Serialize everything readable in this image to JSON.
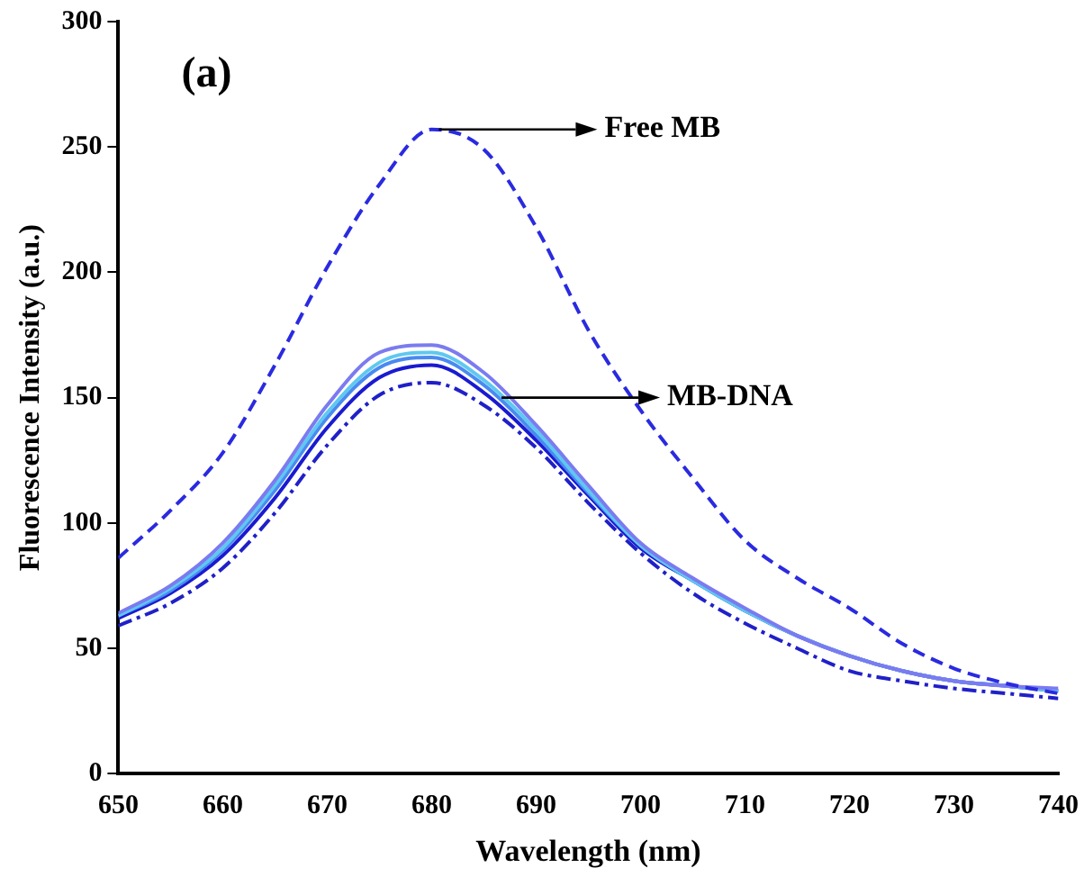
{
  "chart_data": {
    "type": "line",
    "xlabel": "Wavelength (nm)",
    "ylabel": "Fluorescence Intensity (a.u.)",
    "x": [
      650,
      655,
      660,
      665,
      670,
      675,
      680,
      685,
      690,
      695,
      700,
      705,
      710,
      715,
      720,
      725,
      730,
      735,
      740
    ],
    "series": [
      {
        "color": "#2a2ae0",
        "line_style": "dashed",
        "values": [
          86,
          105,
          128,
          163,
          202,
          235,
          257,
          249,
          218,
          177,
          145,
          118,
          93,
          78,
          66,
          52,
          42,
          36,
          32
        ]
      },
      {
        "color": "#7b7bf0",
        "values": [
          64,
          75,
          92,
          117,
          147,
          168,
          171,
          160,
          139,
          115,
          92,
          78,
          66,
          55,
          47,
          41,
          37,
          35,
          34
        ]
      },
      {
        "color": "#5fc8f0",
        "values": [
          63,
          74,
          90,
          115,
          144,
          164,
          168,
          157,
          137,
          113,
          91,
          77,
          65,
          55,
          47,
          41,
          37,
          35,
          33
        ]
      },
      {
        "color": "#4a8af0",
        "values": [
          63,
          73,
          89,
          113,
          142,
          162,
          166,
          155,
          135,
          112,
          91,
          77,
          65,
          55,
          47,
          41,
          37,
          35,
          33
        ]
      },
      {
        "color": "#1a1ad0",
        "values": [
          62,
          72,
          87,
          110,
          138,
          158,
          163,
          152,
          133,
          111,
          90,
          77,
          65,
          55,
          47,
          41,
          37,
          35,
          33
        ]
      },
      {
        "color": "#2020c8",
        "line_style": "dotted",
        "values": [
          59,
          68,
          82,
          104,
          131,
          151,
          156,
          147,
          130,
          108,
          88,
          72,
          60,
          50,
          41,
          37,
          34,
          32,
          30
        ]
      }
    ],
    "xlim": [
      650,
      740
    ],
    "xticks": [
      650,
      660,
      670,
      680,
      690,
      700,
      710,
      720,
      730,
      740
    ],
    "ylim": [
      0,
      300
    ],
    "yticks": [
      0,
      50,
      100,
      150,
      200,
      250,
      300
    ],
    "grid": false,
    "legend": false,
    "marker": "none",
    "annotations": [
      "(a)",
      {
        "text": "Free MB",
        "x": 680,
        "y": 257
      },
      {
        "text": "MB-DNA",
        "x": 686,
        "y": 150
      }
    ]
  }
}
